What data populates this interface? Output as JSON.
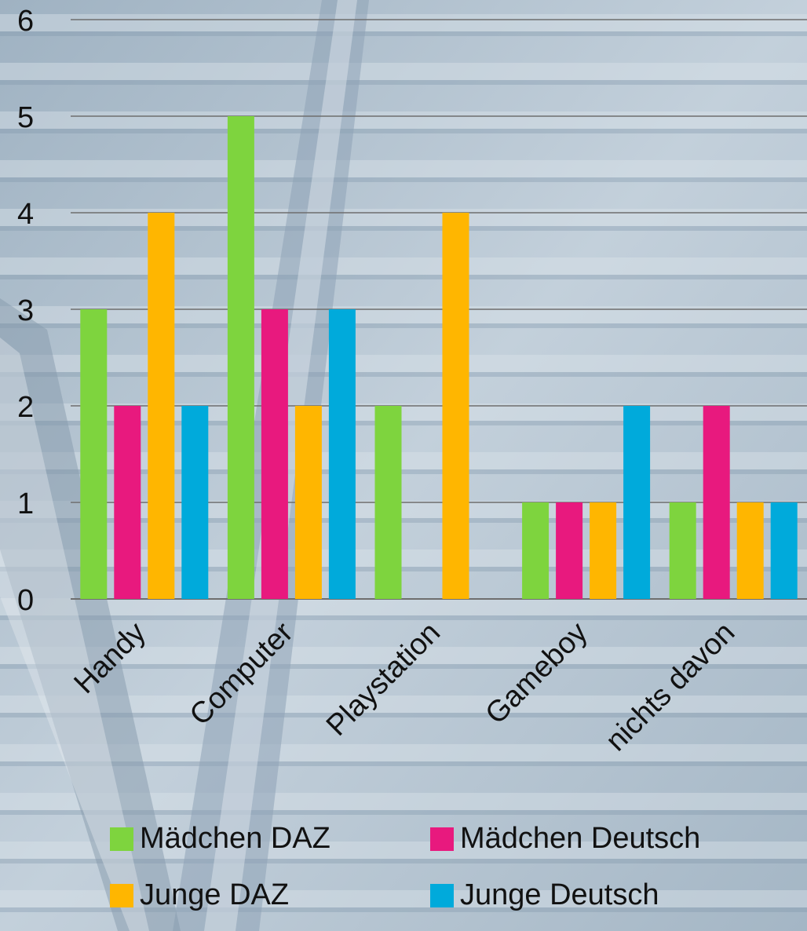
{
  "chart_data": {
    "type": "bar",
    "categories": [
      "Handy",
      "Computer",
      "Playstation",
      "Gameboy",
      "nichts davon"
    ],
    "series": [
      {
        "name": "Mädchen DAZ",
        "color": "#7ed43e",
        "values": [
          3,
          5,
          2,
          1,
          1
        ]
      },
      {
        "name": "Mädchen Deutsch",
        "color": "#e8197e",
        "values": [
          2,
          3,
          0,
          1,
          2
        ]
      },
      {
        "name": "Junge DAZ",
        "color": "#ffb600",
        "values": [
          4,
          2,
          4,
          1,
          1
        ]
      },
      {
        "name": "Junge Deutsch",
        "color": "#00aadb",
        "values": [
          2,
          3,
          0,
          2,
          1
        ]
      }
    ],
    "y_ticks": [
      "0",
      "1",
      "2",
      "3",
      "4",
      "5",
      "6"
    ],
    "ylim": [
      0,
      6
    ],
    "grid": true,
    "legend_position": "bottom",
    "background": "railway tracks photo"
  }
}
